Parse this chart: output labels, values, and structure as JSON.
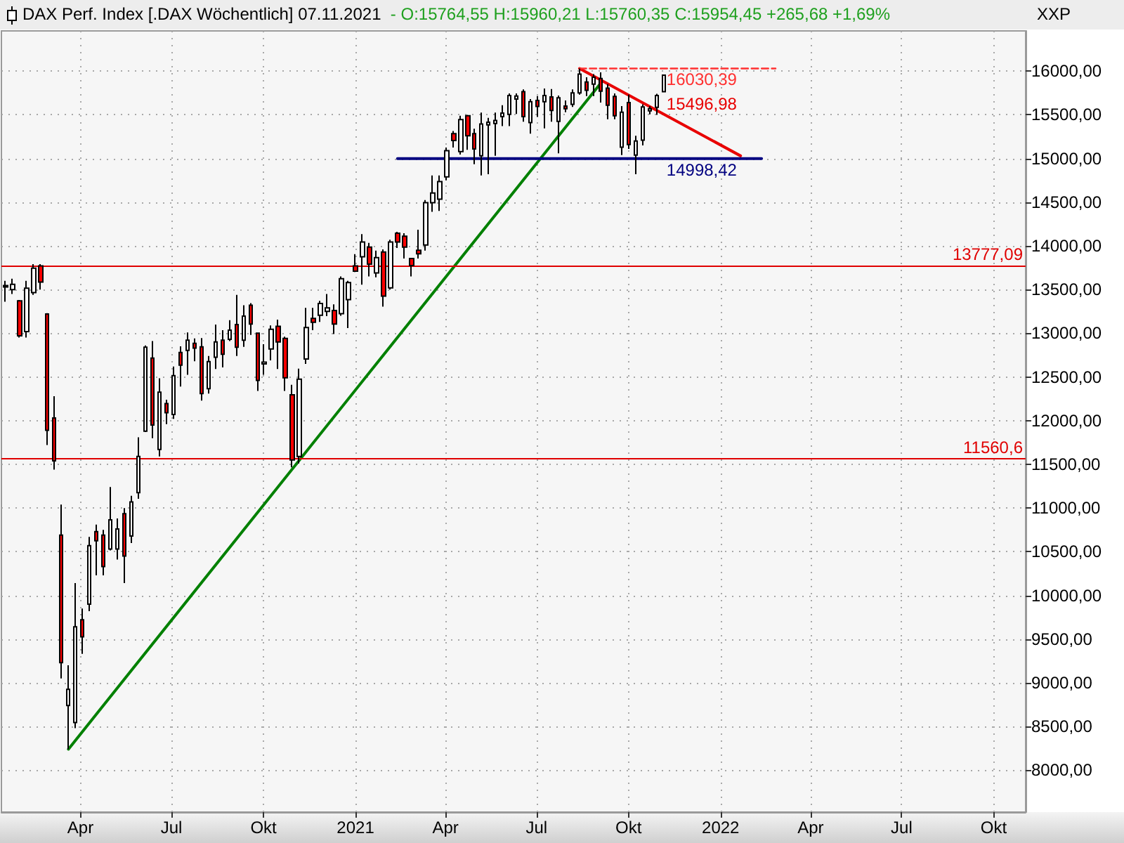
{
  "chart_data": {
    "type": "candlestick",
    "title": "DAX Perf. Index [.DAX Wöchentlich] 07.11.2021",
    "subtitle": "- O:15764,55 H:15960,21 L:15760,35 C:15954,45 +265,68 +1,69%",
    "ylabel": "XXP",
    "x": [
      "2020-01-17",
      "2020-01-24",
      "2020-01-31",
      "2020-02-07",
      "2020-02-14",
      "2020-02-21",
      "2020-02-28",
      "2020-03-06",
      "2020-03-13",
      "2020-03-20",
      "2020-03-27",
      "2020-04-03",
      "2020-04-10",
      "2020-04-17",
      "2020-04-24",
      "2020-05-01",
      "2020-05-08",
      "2020-05-15",
      "2020-05-22",
      "2020-05-29",
      "2020-06-05",
      "2020-06-12",
      "2020-06-19",
      "2020-06-26",
      "2020-07-03",
      "2020-07-10",
      "2020-07-17",
      "2020-07-24",
      "2020-07-31",
      "2020-08-07",
      "2020-08-14",
      "2020-08-21",
      "2020-08-28",
      "2020-09-04",
      "2020-09-11",
      "2020-09-18",
      "2020-09-25",
      "2020-10-02",
      "2020-10-09",
      "2020-10-16",
      "2020-10-23",
      "2020-10-30",
      "2020-11-06",
      "2020-11-13",
      "2020-11-20",
      "2020-11-27",
      "2020-12-04",
      "2020-12-11",
      "2020-12-18",
      "2020-12-25",
      "2021-01-01",
      "2021-01-08",
      "2021-01-15",
      "2021-01-22",
      "2021-01-29",
      "2021-02-05",
      "2021-02-12",
      "2021-02-19",
      "2021-02-26",
      "2021-03-05",
      "2021-03-12",
      "2021-03-19",
      "2021-03-26",
      "2021-04-02",
      "2021-04-09",
      "2021-04-16",
      "2021-04-23",
      "2021-04-30",
      "2021-05-07",
      "2021-05-14",
      "2021-05-21",
      "2021-05-28",
      "2021-06-04",
      "2021-06-11",
      "2021-06-18",
      "2021-06-25",
      "2021-07-02",
      "2021-07-09",
      "2021-07-16",
      "2021-07-23",
      "2021-07-30",
      "2021-08-06",
      "2021-08-13",
      "2021-08-20",
      "2021-08-27",
      "2021-09-03",
      "2021-09-10",
      "2021-09-17",
      "2021-09-24",
      "2021-10-01",
      "2021-10-08",
      "2021-10-15",
      "2021-10-22",
      "2021-10-29",
      "2021-11-05"
    ],
    "ohlc": [
      [
        13530,
        13600,
        13360,
        13545
      ],
      [
        13500,
        13625,
        13450,
        13560
      ],
      [
        13370,
        13380,
        12950,
        12970
      ],
      [
        13020,
        13600,
        12950,
        13515
      ],
      [
        13465,
        13790,
        13440,
        13745
      ],
      [
        13770,
        13790,
        13500,
        13585
      ],
      [
        13220,
        13230,
        11720,
        11890
      ],
      [
        12030,
        12280,
        11440,
        11540
      ],
      [
        10690,
        11040,
        9050,
        9230
      ],
      [
        8740,
        9200,
        8240,
        8925
      ],
      [
        8545,
        10140,
        8480,
        9640
      ],
      [
        9720,
        9850,
        9330,
        9525
      ],
      [
        9900,
        10670,
        9820,
        10570
      ],
      [
        10730,
        10810,
        10230,
        10625
      ],
      [
        10690,
        10750,
        10230,
        10330
      ],
      [
        10530,
        11240,
        10515,
        10865
      ],
      [
        10530,
        10880,
        10410,
        10760
      ],
      [
        10935,
        11000,
        10140,
        10450
      ],
      [
        10680,
        11140,
        10600,
        11070
      ],
      [
        11175,
        11810,
        11105,
        11590
      ],
      [
        11880,
        12860,
        11870,
        12840
      ],
      [
        12715,
        12910,
        11800,
        11950
      ],
      [
        11670,
        12485,
        11590,
        12325
      ],
      [
        12195,
        12240,
        11960,
        12090
      ],
      [
        12070,
        12620,
        12020,
        12515
      ],
      [
        12780,
        12850,
        12390,
        12635
      ],
      [
        12805,
        13010,
        12525,
        12920
      ],
      [
        12885,
        12940,
        12680,
        12830
      ],
      [
        12845,
        12945,
        12230,
        12310
      ],
      [
        12365,
        12740,
        12310,
        12675
      ],
      [
        12725,
        13100,
        12590,
        12900
      ],
      [
        12920,
        13035,
        12610,
        12760
      ],
      [
        12930,
        13150,
        12910,
        13035
      ],
      [
        13100,
        13440,
        12740,
        12840
      ],
      [
        12920,
        13320,
        12845,
        13195
      ],
      [
        13320,
        13345,
        12980,
        13105
      ],
      [
        13000,
        13010,
        12340,
        12460
      ],
      [
        12650,
        12875,
        12525,
        12670
      ],
      [
        12820,
        13090,
        12690,
        13045
      ],
      [
        13080,
        13155,
        12590,
        12900
      ],
      [
        12940,
        12960,
        12340,
        12490
      ],
      [
        12295,
        12410,
        11465,
        11550
      ],
      [
        11590,
        12595,
        11510,
        12475
      ],
      [
        12705,
        13290,
        12650,
        13065
      ],
      [
        13170,
        13290,
        13035,
        13125
      ],
      [
        13205,
        13370,
        13130,
        13340
      ],
      [
        13250,
        13450,
        13195,
        13290
      ],
      [
        13260,
        13330,
        12990,
        13105
      ],
      [
        13225,
        13650,
        13200,
        13625
      ],
      [
        13385,
        13600,
        13060,
        13580
      ],
      [
        13770,
        13905,
        13700,
        13710
      ],
      [
        13875,
        14135,
        13555,
        14045
      ],
      [
        13985,
        14035,
        13650,
        13790
      ],
      [
        13690,
        13945,
        13640,
        13865
      ],
      [
        13930,
        13960,
        13305,
        13425
      ],
      [
        13520,
        14070,
        13500,
        14045
      ],
      [
        14145,
        14160,
        13975,
        14045
      ],
      [
        14110,
        14145,
        13855,
        13985
      ],
      [
        13855,
        13860,
        13650,
        13775
      ],
      [
        13950,
        14185,
        13855,
        13910
      ],
      [
        14010,
        14525,
        13945,
        14495
      ],
      [
        14495,
        14805,
        14390,
        14605
      ],
      [
        14535,
        14805,
        14400,
        14735
      ],
      [
        14790,
        15125,
        14750,
        15090
      ],
      [
        15285,
        15315,
        15125,
        15205
      ],
      [
        15080,
        15490,
        15045,
        15445
      ],
      [
        15490,
        15500,
        15100,
        15260
      ],
      [
        15285,
        15340,
        14935,
        15110
      ],
      [
        15030,
        15525,
        14805,
        15395
      ],
      [
        15385,
        15465,
        14820,
        15415
      ],
      [
        15400,
        15525,
        15030,
        15435
      ],
      [
        15480,
        15610,
        15370,
        15520
      ],
      [
        15505,
        15745,
        15370,
        15720
      ],
      [
        15680,
        15745,
        15510,
        15715
      ],
      [
        15765,
        15790,
        15420,
        15480
      ],
      [
        15410,
        15680,
        15285,
        15650
      ],
      [
        15665,
        15715,
        15475,
        15595
      ],
      [
        15650,
        15800,
        15345,
        15720
      ],
      [
        15705,
        15795,
        15420,
        15550
      ],
      [
        15425,
        15720,
        15060,
        15695
      ],
      [
        15600,
        15665,
        15530,
        15570
      ],
      [
        15620,
        15790,
        15590,
        15750
      ],
      [
        15750,
        16030.39,
        15730,
        15965
      ],
      [
        15875,
        15930,
        15715,
        15780
      ],
      [
        15850,
        15965,
        15715,
        15930
      ],
      [
        15915,
        15985,
        15640,
        15770
      ],
      [
        15805,
        15850,
        15450,
        15610
      ],
      [
        15710,
        15745,
        15450,
        15490
      ],
      [
        15130,
        15600,
        15040,
        15530
      ],
      [
        15640,
        15730,
        15110,
        15160
      ],
      [
        15040,
        15260,
        14820,
        15200
      ],
      [
        15210,
        15620,
        15150,
        15590
      ],
      [
        15545,
        15600,
        15505,
        15570
      ],
      [
        15585,
        15740,
        15500,
        15720
      ],
      [
        15764.55,
        15960.21,
        15760.35,
        15954.45
      ]
    ],
    "colors": [
      "#ffffff",
      "#ffffff",
      "#ff0000",
      "#ffffff",
      "#ffffff",
      "#ff0000",
      "#ff0000",
      "#ff0000",
      "#ff0000",
      "#ffffff",
      "#ffffff",
      "#ff0000",
      "#ffffff",
      "#ff0000",
      "#ff0000",
      "#ffffff",
      "#ffffff",
      "#ff0000",
      "#ffffff",
      "#ffffff",
      "#ffffff",
      "#ff0000",
      "#ffffff",
      "#ff0000",
      "#ffffff",
      "#ff0000",
      "#ffffff",
      "#ff0000",
      "#ff0000",
      "#ffffff",
      "#ffffff",
      "#ff0000",
      "#ffffff",
      "#ff0000",
      "#ffffff",
      "#ff0000",
      "#ff0000",
      "#ffffff",
      "#ffffff",
      "#ff0000",
      "#ff0000",
      "#ff0000",
      "#ffffff",
      "#ffffff",
      "#ff0000",
      "#ffffff",
      "#ffffff",
      "#ff0000",
      "#ffffff",
      "#ffffff",
      "#ff0000",
      "#ffffff",
      "#ff0000",
      "#ffffff",
      "#ff0000",
      "#ffffff",
      "#ff0000",
      "#ff0000",
      "#ff0000",
      "#ff0000",
      "#ffffff",
      "#ffffff",
      "#ffffff",
      "#ffffff",
      "#ff0000",
      "#ffffff",
      "#ff0000",
      "#ff0000",
      "#ffffff",
      "#ffffff",
      "#ffffff",
      "#ffffff",
      "#ffffff",
      "#ffffff",
      "#ff0000",
      "#ffffff",
      "#ff0000",
      "#ffffff",
      "#ff0000",
      "#ffffff",
      "#ff0000",
      "#ffffff",
      "#ffffff",
      "#ff0000",
      "#ffffff",
      "#ff0000",
      "#ff0000",
      "#ff0000",
      "#ffffff",
      "#ff0000",
      "#ffffff",
      "#ffffff",
      "#ffffff",
      "#ffffff",
      "#ffffff"
    ],
    "series": [
      {
        "type": "line",
        "x": [
          "2020-03-20",
          "2021-09-03"
        ],
        "values": [
          8240,
          15860
        ],
        "color": "#008000"
      },
      {
        "type": "line",
        "x": [
          "2021-08-13",
          "2022-01-21"
        ],
        "values": [
          16030,
          15030
        ],
        "color": "#e80000"
      },
      {
        "type": "line",
        "x": [
          "2021-02-12",
          "2022-02-11"
        ],
        "values": [
          14998.42,
          14998.42
        ],
        "color": "#000080"
      },
      {
        "type": "line",
        "x": [
          "2021-08-13",
          "2022-02-25"
        ],
        "values": [
          16030.39,
          16030.39
        ],
        "color": "#ff3030",
        "line_style": "dashed"
      }
    ],
    "xlim": [
      "2020-01-13",
      "2022-11-02"
    ],
    "xticks": [
      {
        "value": "2020-04-01",
        "label": "Apr"
      },
      {
        "value": "2020-07-01",
        "label": "Jul"
      },
      {
        "value": "2020-10-01",
        "label": "Okt"
      },
      {
        "value": "2021-01-01",
        "label": "2021"
      },
      {
        "value": "2021-04-01",
        "label": "Apr"
      },
      {
        "value": "2021-07-01",
        "label": "Jul"
      },
      {
        "value": "2021-10-01",
        "label": "Okt"
      },
      {
        "value": "2022-01-01",
        "label": "2022"
      },
      {
        "value": "2022-04-01",
        "label": "Apr"
      },
      {
        "value": "2022-07-01",
        "label": "Jul"
      },
      {
        "value": "2022-10-01",
        "label": "Okt"
      }
    ],
    "ylim": [
      7520,
      16460
    ],
    "yticks": [
      {
        "value": 8000,
        "label": "8000,00"
      },
      {
        "value": 8500,
        "label": "8500,00"
      },
      {
        "value": 9000,
        "label": "9000,00"
      },
      {
        "value": 9500,
        "label": "9500,00"
      },
      {
        "value": 10000,
        "label": "10000,00"
      },
      {
        "value": 10500,
        "label": "10500,00"
      },
      {
        "value": 11000,
        "label": "11000,00"
      },
      {
        "value": 11500,
        "label": "11500,00"
      },
      {
        "value": 12000,
        "label": "12000,00"
      },
      {
        "value": 12500,
        "label": "12500,00"
      },
      {
        "value": 13000,
        "label": "13000,00"
      },
      {
        "value": 13500,
        "label": "13500,00"
      },
      {
        "value": 14000,
        "label": "14000,00"
      },
      {
        "value": 14500,
        "label": "14500,00"
      },
      {
        "value": 15000,
        "label": "15000,00"
      },
      {
        "value": 15500,
        "label": "15500,00"
      },
      {
        "value": 16000,
        "label": "16000,00"
      }
    ],
    "ref_lines": [
      {
        "axis": "y",
        "value": 13777.09,
        "label": "13777,09",
        "color": "#e00000"
      },
      {
        "axis": "y",
        "value": 11560.6,
        "label": "11560,6",
        "color": "#e00000"
      }
    ],
    "annotations": [
      {
        "text": "16030,39",
        "x": "2021-11-08",
        "y": 16030.39
      },
      {
        "text": "15496,98",
        "x": "2021-11-08",
        "y": 15496.98
      },
      {
        "text": "14998,42",
        "x": "2021-11-08",
        "y": 14998.42
      }
    ],
    "grid": true
  }
}
